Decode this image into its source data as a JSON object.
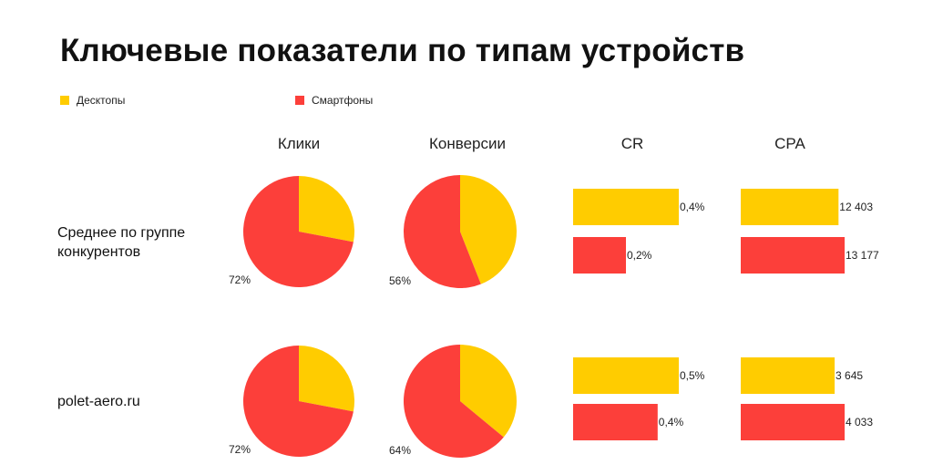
{
  "title": "Ключевые показатели по типам устройств",
  "colors": {
    "desktop": "#FFCC00",
    "mobile": "#FC3F3A"
  },
  "legend": [
    {
      "label": "Десктопы",
      "color": "#FFCC00"
    },
    {
      "label": "Смартфоны",
      "color": "#FC3F3A"
    }
  ],
  "columns": [
    "Клики",
    "Конверсии",
    "CR",
    "CPA"
  ],
  "rows": [
    "Среднее по группе\nконкурентов",
    "polet-aero.ru"
  ],
  "chart_data": [
    {
      "type": "pie",
      "metric": "Клики",
      "row": "Среднее по группе конкурентов",
      "slices": [
        {
          "name": "Десктопы",
          "value": 28
        },
        {
          "name": "Смартфоны",
          "value": 72
        }
      ],
      "label": "72%"
    },
    {
      "type": "pie",
      "metric": "Конверсии",
      "row": "Среднее по группе конкурентов",
      "slices": [
        {
          "name": "Десктопы",
          "value": 44
        },
        {
          "name": "Смартфоны",
          "value": 56
        }
      ],
      "label": "56%"
    },
    {
      "type": "bar",
      "metric": "CR",
      "row": "Среднее по группе конкурентов",
      "categories": [
        "Десктопы",
        "Смартфоны"
      ],
      "values": [
        0.4,
        0.2
      ],
      "labels": [
        "0,4%",
        "0,2%"
      ],
      "xlim": [
        0,
        0.4
      ]
    },
    {
      "type": "bar",
      "metric": "CPA",
      "row": "Среднее по группе конкурентов",
      "categories": [
        "Десктопы",
        "Смартфоны"
      ],
      "values": [
        12403,
        13177
      ],
      "labels": [
        "12 403",
        "13 177"
      ],
      "xlim": [
        0,
        13177
      ]
    },
    {
      "type": "pie",
      "metric": "Клики",
      "row": "polet-aero.ru",
      "slices": [
        {
          "name": "Десктопы",
          "value": 28
        },
        {
          "name": "Смартфоны",
          "value": 72
        }
      ],
      "label": "72%"
    },
    {
      "type": "pie",
      "metric": "Конверсии",
      "row": "polet-aero.ru",
      "slices": [
        {
          "name": "Десктопы",
          "value": 36
        },
        {
          "name": "Смартфоны",
          "value": 64
        }
      ],
      "label": "64%"
    },
    {
      "type": "bar",
      "metric": "CR",
      "row": "polet-aero.ru",
      "categories": [
        "Десктопы",
        "Смартфоны"
      ],
      "values": [
        0.5,
        0.4
      ],
      "labels": [
        "0,5%",
        "0,4%"
      ],
      "xlim": [
        0,
        0.5
      ]
    },
    {
      "type": "bar",
      "metric": "CPA",
      "row": "polet-aero.ru",
      "categories": [
        "Десктопы",
        "Смартфоны"
      ],
      "values": [
        3645,
        4033
      ],
      "labels": [
        "3 645",
        "4 033"
      ],
      "xlim": [
        0,
        4033
      ]
    }
  ]
}
